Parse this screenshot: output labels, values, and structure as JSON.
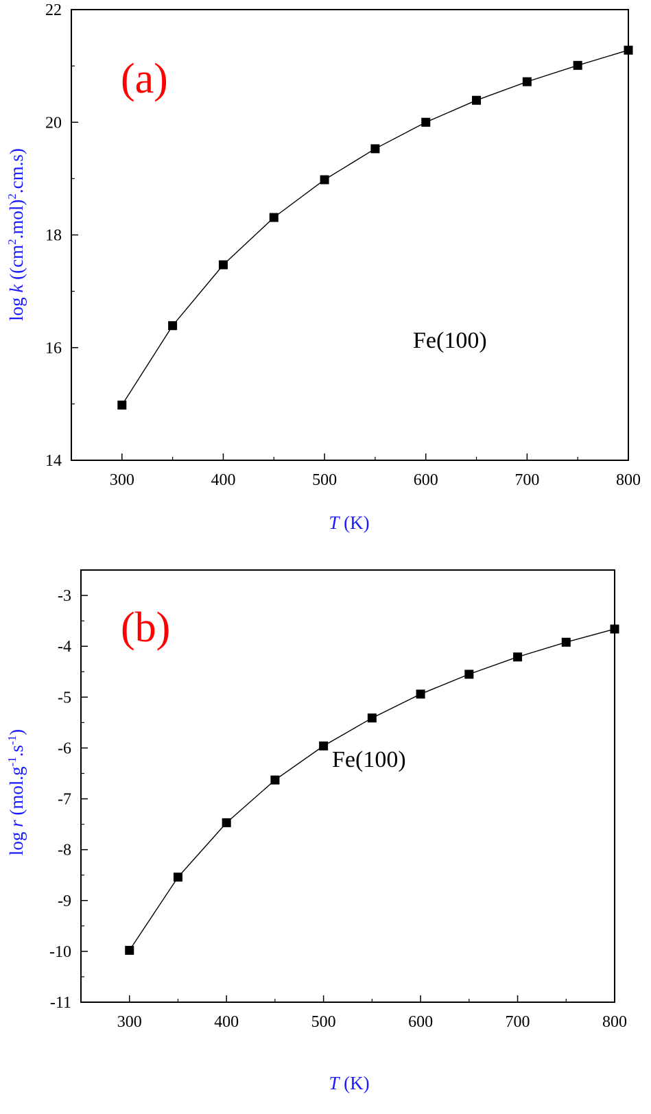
{
  "chart_data": [
    {
      "type": "line",
      "panel_tag": "(a)",
      "annotation": "Fe(100)",
      "xlabel": {
        "symbol": "T",
        "unit": " (K)"
      },
      "ylabel": {
        "prefix": "log ",
        "symbol": "k",
        "unit": "  ((cm",
        "sup1": "2",
        "mid": ".mol)",
        "sup2": "2",
        "end": ".cm.s)"
      },
      "xlim": [
        250,
        800
      ],
      "ylim": [
        14,
        22
      ],
      "xticks": [
        300,
        400,
        500,
        600,
        700,
        800
      ],
      "yticks": [
        14,
        16,
        18,
        20,
        22
      ],
      "x": [
        300,
        350,
        400,
        450,
        500,
        550,
        600,
        650,
        700,
        750,
        800
      ],
      "values": [
        14.98,
        16.39,
        17.47,
        18.31,
        18.98,
        19.53,
        20.0,
        20.39,
        20.72,
        21.01,
        21.28
      ],
      "marker": "square",
      "grid": false,
      "colors": {
        "line": "#000000",
        "axis_label": "#1a1aff",
        "panel_tag": "#ff0000"
      }
    },
    {
      "type": "line",
      "panel_tag": "(b)",
      "annotation": "Fe(100)",
      "xlabel": {
        "symbol": "T",
        "unit": " (K)"
      },
      "ylabel": {
        "prefix": "log ",
        "symbol": "r",
        "unit": "  (mol.g",
        "sup1": "-1",
        "mid": ".s",
        "sup2": "-1",
        "end": ")"
      },
      "xlim": [
        250,
        800
      ],
      "ylim": [
        -11,
        -2.5
      ],
      "xticks": [
        300,
        400,
        500,
        600,
        700,
        800
      ],
      "yticks": [
        -11,
        -10,
        -9,
        -8,
        -7,
        -6,
        -5,
        -4,
        -3
      ],
      "x": [
        300,
        350,
        400,
        450,
        500,
        550,
        600,
        650,
        700,
        750,
        800
      ],
      "values": [
        -9.98,
        -8.54,
        -7.47,
        -6.63,
        -5.96,
        -5.41,
        -4.94,
        -4.55,
        -4.21,
        -3.92,
        -3.66
      ],
      "marker": "square",
      "grid": false,
      "colors": {
        "line": "#000000",
        "axis_label": "#1a1aff",
        "panel_tag": "#ff0000"
      }
    }
  ]
}
